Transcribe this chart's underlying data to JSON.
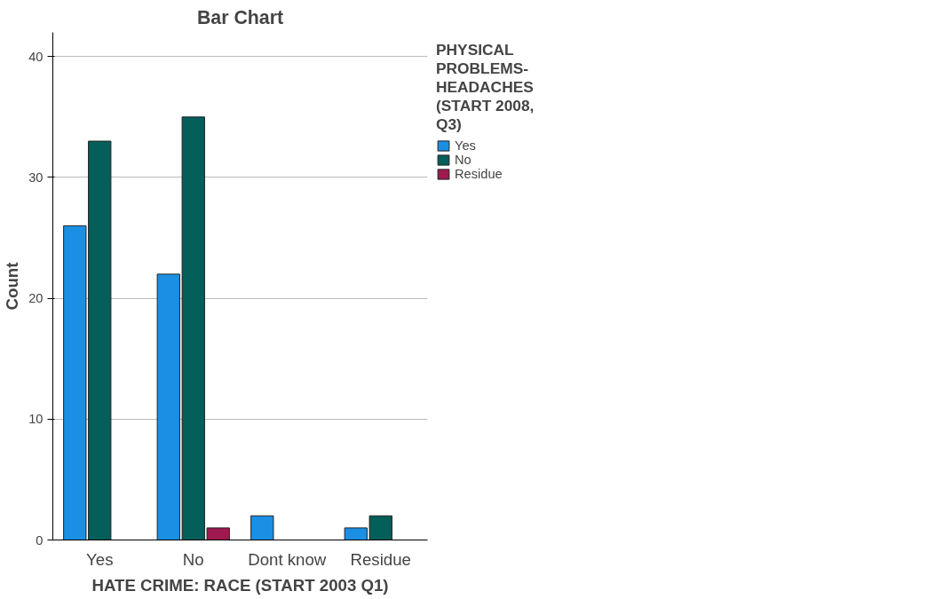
{
  "chart_data": {
    "type": "bar",
    "title": "Bar Chart",
    "xlabel": "HATE CRIME: RACE (START 2003 Q1)",
    "ylabel": "Count",
    "legend_title": "PHYSICAL PROBLEMS-HEADACHES (START 2008, Q3)",
    "categories": [
      "Yes",
      "No",
      "Dont know",
      "Residue"
    ],
    "series": [
      {
        "name": "Yes",
        "color": "#1a8fe3",
        "values": [
          26,
          22,
          2,
          1
        ]
      },
      {
        "name": "No",
        "color": "#045e5a",
        "values": [
          33,
          35,
          null,
          2
        ]
      },
      {
        "name": "Residue",
        "color": "#9e1a4e",
        "values": [
          null,
          1,
          null,
          null
        ]
      }
    ],
    "ylim": [
      0,
      42
    ],
    "yticks": [
      0,
      10,
      20,
      30,
      40
    ],
    "grid": "y",
    "legend": "right"
  }
}
